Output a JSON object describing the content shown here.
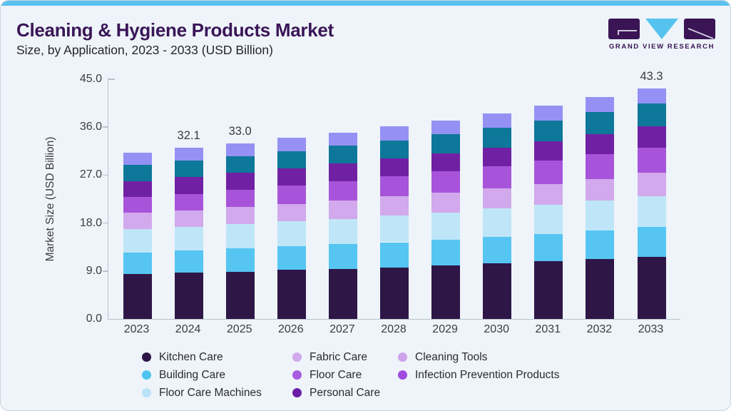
{
  "page": {
    "title": "Cleaning & Hygiene Products Market",
    "subtitle": "Size, by Application, 2023 - 2033 (USD Billion)",
    "accent_bar_color": "#5bc2f0",
    "card_background": "#eef4f9",
    "brand": {
      "name": "GRAND VIEW RESEARCH",
      "logo_block_color": "#3a1454",
      "logo_triangle_color": "#56c3ee"
    }
  },
  "chart_data": {
    "type": "bar",
    "stacked": true,
    "title": "Cleaning & Hygiene Products Market Size, by Application, 2023 - 2033 (USD Billion)",
    "xlabel": "",
    "ylabel": "Market Size (USD Billion)",
    "ylim": [
      0,
      45
    ],
    "grid": false,
    "legend_position": "bottom",
    "yticks": [
      {
        "value": 0,
        "label": "0.0"
      },
      {
        "value": 9,
        "label": "9.0"
      },
      {
        "value": 18,
        "label": "18.0"
      },
      {
        "value": 27,
        "label": "27.0"
      },
      {
        "value": 36,
        "label": "36.0"
      },
      {
        "value": 45,
        "label": "45.0"
      }
    ],
    "categories": [
      "2023",
      "2024",
      "2025",
      "2026",
      "2027",
      "2028",
      "2029",
      "2030",
      "2031",
      "2032",
      "2033"
    ],
    "series": [
      {
        "name": "Kitchen Care",
        "color": "#2e1647",
        "values": [
          8.5,
          8.7,
          8.9,
          9.2,
          9.4,
          9.7,
          10.0,
          10.4,
          10.8,
          11.2,
          11.7
        ]
      },
      {
        "name": "Building Care",
        "color": "#56c5f2",
        "values": [
          4.0,
          4.1,
          4.3,
          4.4,
          4.6,
          4.7,
          4.9,
          5.0,
          5.2,
          5.4,
          5.6
        ]
      },
      {
        "name": "Floor Care Machines",
        "color": "#bfe6f8",
        "values": [
          4.4,
          4.5,
          4.6,
          4.7,
          4.8,
          5.0,
          5.1,
          5.3,
          5.4,
          5.6,
          5.8
        ]
      },
      {
        "name": "Fabric Care",
        "color": "#d1a9ec",
        "values": [
          3.0,
          3.1,
          3.2,
          3.3,
          3.5,
          3.6,
          3.7,
          3.8,
          3.9,
          4.1,
          4.3
        ]
      },
      {
        "name": "Floor Care",
        "color": "#a854da",
        "values": [
          3.0,
          3.1,
          3.3,
          3.4,
          3.6,
          3.8,
          4.0,
          4.2,
          4.4,
          4.6,
          4.8
        ]
      },
      {
        "name": "Personal Care",
        "color": "#7021a3",
        "values": [
          3.0,
          3.1,
          3.1,
          3.2,
          3.3,
          3.3,
          3.4,
          3.5,
          3.7,
          3.8,
          4.0
        ]
      },
      {
        "name": "Cleaning Tools",
        "color": "#0d7899",
        "values": [
          3.0,
          3.1,
          3.2,
          3.3,
          3.3,
          3.4,
          3.6,
          3.7,
          3.9,
          4.1,
          4.3
        ]
      },
      {
        "name": "Infection Prevention Products",
        "color": "#9591f4",
        "values": [
          2.3,
          2.4,
          2.4,
          2.5,
          2.5,
          2.6,
          2.6,
          2.7,
          2.7,
          2.8,
          2.8
        ]
      }
    ],
    "total_labels": [
      "",
      "32.1",
      "33.0",
      "",
      "",
      "",
      "",
      "",
      "",
      "",
      "43.3"
    ]
  },
  "legend": {
    "items": [
      {
        "label": "Kitchen Care",
        "color": "#2e1647"
      },
      {
        "label": "Fabric Care",
        "color": "#d1a9ec"
      },
      {
        "label": "Cleaning Tools",
        "color": "#cfa3ea"
      },
      {
        "label": "Building Care",
        "color": "#4ec3f0"
      },
      {
        "label": "Floor Care",
        "color": "#a75be0"
      },
      {
        "label": "Infection Prevention Products",
        "color": "#a04ae0"
      },
      {
        "label": "Floor Care Machines",
        "color": "#b9e3f6"
      },
      {
        "label": "Personal Care",
        "color": "#6c1da5"
      }
    ]
  }
}
